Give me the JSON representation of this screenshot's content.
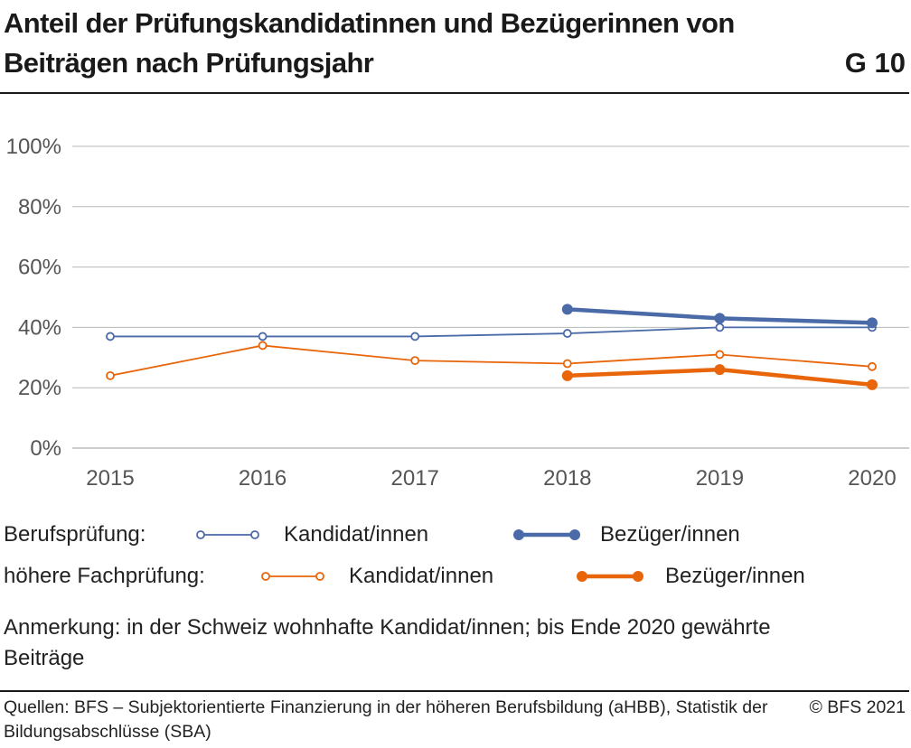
{
  "header": {
    "title": "Anteil der Prüfungskandidatinnen und Bezügerinnen von Beiträgen nach Prüfungsjahr",
    "chart_number": "G 10"
  },
  "legend": {
    "groups": [
      {
        "group": "Berufsprüfung:",
        "candidates": "Kandidat/innen",
        "recipients": "Bezüger/innen"
      },
      {
        "group": "höhere Fachprüfung:",
        "candidates": "Kandidat/innen",
        "recipients": "Bezüger/innen"
      }
    ]
  },
  "note": "Anmerkung: in der Schweiz wohnhafte Kandidat/innen; bis Ende 2020 gewährte Beiträge",
  "footer": {
    "sources": "Quellen: BFS – Subjektorientierte Finanzierung in der höheren Berufsbildung (aHBB), Statistik der Bildungsabschlüsse (SBA)",
    "copyright": "© BFS 2021"
  },
  "colors": {
    "blue": "#4a6aa8",
    "orange": "#e8650a",
    "grid": "#b8b8b8"
  },
  "chart_data": {
    "type": "line",
    "title": "Anteil der Prüfungskandidatinnen und Bezügerinnen von Beiträgen nach Prüfungsjahr",
    "x": [
      "2015",
      "2016",
      "2017",
      "2018",
      "2019",
      "2020"
    ],
    "yticks": [
      "0%",
      "20%",
      "40%",
      "60%",
      "80%",
      "100%"
    ],
    "ylim": [
      0,
      100
    ],
    "grid": true,
    "legend_position": "bottom",
    "series": [
      {
        "name": "Berufsprüfung: Kandidat/innen",
        "color": "#4a6aa8",
        "style": "thin-open",
        "values": [
          37,
          37,
          37,
          38,
          40,
          40
        ]
      },
      {
        "name": "Berufsprüfung: Bezüger/innen",
        "color": "#4a6aa8",
        "style": "thick-filled",
        "values": [
          null,
          null,
          null,
          46,
          43,
          41.5
        ]
      },
      {
        "name": "höhere Fachprüfung: Kandidat/innen",
        "color": "#e8650a",
        "style": "thin-open",
        "values": [
          24,
          34,
          29,
          28,
          31,
          27
        ]
      },
      {
        "name": "höhere Fachprüfung: Bezüger/innen",
        "color": "#e8650a",
        "style": "thick-filled",
        "values": [
          null,
          null,
          null,
          24,
          26,
          21
        ]
      }
    ]
  }
}
